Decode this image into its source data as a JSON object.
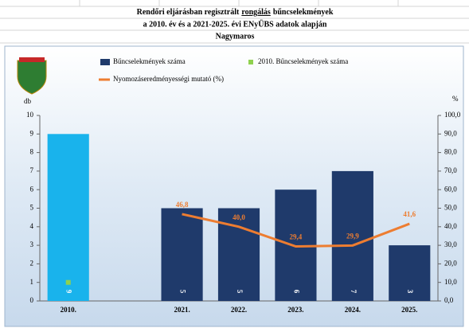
{
  "chart_data": {
    "type": "bar",
    "title": [
      "Rendőri eljárásban regisztrált",
      "rongálás",
      "bűncselekmények"
    ],
    "subtitle": "a 2010. év és a 2021-2025. évi ENyÜBS adatok alapján",
    "location": "Nagymaros",
    "y_label": "db",
    "y2_label": "%",
    "categories": [
      "2010.",
      null,
      "2021.",
      "2022.",
      "2023.",
      "2024.",
      "2025."
    ],
    "series": [
      {
        "name": "Bűncselekmények száma",
        "type": "bar",
        "color": "#1f3a6b",
        "colors": [
          "#19b3ec",
          "#1f3a6b",
          "#1f3a6b",
          "#1f3a6b",
          "#1f3a6b",
          "#1f3a6b",
          "#1f3a6b"
        ],
        "values": [
          9,
          null,
          5,
          5,
          6,
          7,
          3
        ]
      },
      {
        "name": "2010. Bűncselekmények száma",
        "type": "point",
        "color": "#8fd14f",
        "values": [
          1,
          null,
          null,
          null,
          null,
          null,
          null
        ]
      },
      {
        "name": "Nyomozáseredményességi mutató (%)",
        "type": "line",
        "axis": "y2",
        "color": "#ed7d31",
        "values": [
          null,
          null,
          46.8,
          40.0,
          29.4,
          29.9,
          41.6
        ],
        "value_labels": [
          null,
          null,
          "46,8",
          "40,0",
          "29,4",
          "29,9",
          "41,6"
        ]
      }
    ],
    "ylim": [
      0,
      10
    ],
    "yticks": [
      0,
      1,
      2,
      3,
      4,
      5,
      6,
      7,
      8,
      9,
      10
    ],
    "y2lim": [
      0,
      100
    ],
    "y2ticks": [
      {
        "value": 0,
        "label": "0,0"
      },
      {
        "value": 10,
        "label": "10,0"
      },
      {
        "value": 20,
        "label": "20,0"
      },
      {
        "value": 30,
        "label": "30,0"
      },
      {
        "value": 40,
        "label": "40,0"
      },
      {
        "value": 50,
        "label": "50,0"
      },
      {
        "value": 60,
        "label": "60,0"
      },
      {
        "value": 70,
        "label": "70,0"
      },
      {
        "value": 80,
        "label": "80,0"
      },
      {
        "value": 90,
        "label": "90,0"
      },
      {
        "value": 100,
        "label": "100,0"
      }
    ],
    "grid": false
  }
}
